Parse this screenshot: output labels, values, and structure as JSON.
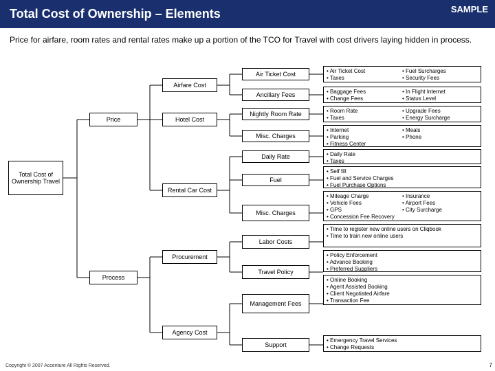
{
  "header": {
    "title": "Total Cost of Ownership – Elements",
    "sample": "SAMPLE"
  },
  "sub": "Price for airfare, room rates and rental rates make up a portion of the TCO for Travel with cost drivers laying hidden in process.",
  "root": "Total Cost of Ownership Travel",
  "l2": {
    "price": "Price",
    "process": "Process"
  },
  "l3": {
    "airfare": "Airfare Cost",
    "hotel": "Hotel Cost",
    "rental": "Rental Car Cost",
    "proc": "Procurement",
    "agency": "Agency Cost"
  },
  "l4": {
    "airticket": "Air Ticket Cost",
    "ancil": "Ancillary Fees",
    "night": "Nightly Room Rate",
    "miscH": "Misc. Charges",
    "daily": "Daily Rate",
    "fuel": "Fuel",
    "miscR": "Misc. Charges",
    "labor": "Labor Costs",
    "tpolicy": "Travel Policy",
    "mgmt": "Management Fees",
    "support": "Support"
  },
  "det": {
    "airticket": [
      "Air Ticket Cost",
      "Fuel Surcharges",
      "Taxes",
      "Security Fees"
    ],
    "ancil": [
      "Baggage Fees",
      "In Flight Internet",
      "Change Fees",
      "Status Level"
    ],
    "night": [
      "Room Rate",
      "Upgrade Fees",
      "Taxes",
      "Energy Surcharge"
    ],
    "miscH": [
      "Internet",
      "Meals",
      "Parking",
      "Phone",
      "Fitness Center"
    ],
    "daily": [
      "Daily Rate",
      "Taxes"
    ],
    "fuel": [
      "Self fill",
      "Fuel and Service Charges",
      "Fuel Purchase Options"
    ],
    "miscR": [
      "Mileage Charge",
      "Insurance",
      "Vehicle Fees",
      "Airport Fees",
      "GPS",
      "City Surcharge",
      "Concession Fee Recovery"
    ],
    "labor": [
      "Time to register new online users on Cliqbook",
      "Time to train new online users"
    ],
    "tpolicy": [
      "Policy Enforcement",
      "Advance Booking",
      "Preferred Suppliers"
    ],
    "mgmt": [
      "Online Booking",
      "Agent Assisted Booking",
      "Client Negotiated Airfare",
      "Transaction Fee"
    ],
    "support": [
      "Emergency Travel Services",
      "Change Requests"
    ]
  },
  "foot": "Copyright © 2007 Accenture All Rights Reserved.",
  "pg": "7",
  "style": {
    "bg": "#ffffff",
    "header_bg": "#1a2f6e",
    "header_color": "#ffffff",
    "line_color": "#000000",
    "box_border": "#000000",
    "font_base": 9
  }
}
